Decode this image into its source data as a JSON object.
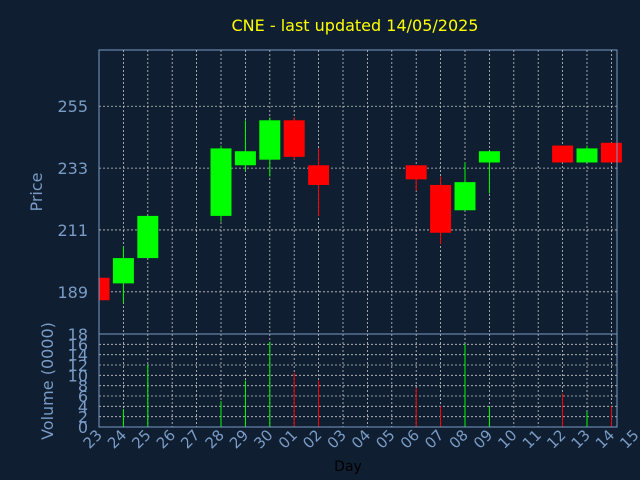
{
  "chart_data": [
    {
      "type": "candlestick",
      "title": "CNE - last updated 14/05/2025",
      "xlabel": "Day",
      "ylabel": "Price",
      "y_ticks": [
        "255",
        "233",
        "211",
        "189"
      ],
      "x_ticks": [
        "23",
        "24",
        "25",
        "26",
        "27",
        "28",
        "29",
        "30",
        "01",
        "02",
        "03",
        "04",
        "05",
        "06",
        "07",
        "08",
        "09",
        "10",
        "11",
        "12",
        "13",
        "14",
        "15"
      ],
      "ylim": [
        174,
        275
      ],
      "grid": true,
      "colors": {
        "up": "#00ff00",
        "down": "#ff0000",
        "title": "#ffff00",
        "axis_text": "#7a9cc6",
        "background": "#0f1e30"
      },
      "candles": [
        {
          "day": "23",
          "open": 194,
          "close": 186,
          "high": 194,
          "low": 186
        },
        {
          "day": "24",
          "open": 192,
          "close": 201,
          "high": 205,
          "low": 185
        },
        {
          "day": "25",
          "open": 201,
          "close": 216,
          "high": 216,
          "low": 201
        },
        {
          "day": "28",
          "open": 216,
          "close": 240,
          "high": 241,
          "low": 214
        },
        {
          "day": "29",
          "open": 234,
          "close": 239,
          "high": 250,
          "low": 232
        },
        {
          "day": "30",
          "open": 236,
          "close": 250,
          "high": 251,
          "low": 230
        },
        {
          "day": "01",
          "open": 250,
          "close": 237,
          "high": 251,
          "low": 236
        },
        {
          "day": "02",
          "open": 234,
          "close": 227,
          "high": 240,
          "low": 216
        },
        {
          "day": "06",
          "open": 234,
          "close": 229,
          "high": 234,
          "low": 225
        },
        {
          "day": "07",
          "open": 227,
          "close": 210,
          "high": 230,
          "low": 206
        },
        {
          "day": "08",
          "open": 218,
          "close": 228,
          "high": 235,
          "low": 218
        },
        {
          "day": "09",
          "open": 235,
          "close": 239,
          "high": 239,
          "low": 224
        },
        {
          "day": "12",
          "open": 241,
          "close": 235,
          "high": 241,
          "low": 235
        },
        {
          "day": "13",
          "open": 235,
          "close": 240,
          "high": 241,
          "low": 235
        },
        {
          "day": "14",
          "open": 242,
          "close": 235,
          "high": 242,
          "low": 235
        }
      ]
    },
    {
      "type": "bar",
      "ylabel": "Volume (0000)",
      "y_ticks": [
        "18",
        "16",
        "14",
        "12",
        "10",
        "8",
        "6",
        "4",
        "2",
        "0"
      ],
      "ylim": [
        0,
        18
      ],
      "x_ticks_shared": true,
      "bars": [
        {
          "day": "24",
          "value": 3.5,
          "direction": "up"
        },
        {
          "day": "25",
          "value": 12,
          "direction": "up"
        },
        {
          "day": "28",
          "value": 5,
          "direction": "up"
        },
        {
          "day": "29",
          "value": 9,
          "direction": "up"
        },
        {
          "day": "30",
          "value": 16.5,
          "direction": "up"
        },
        {
          "day": "01",
          "value": 10.5,
          "direction": "down"
        },
        {
          "day": "02",
          "value": 9,
          "direction": "down"
        },
        {
          "day": "06",
          "value": 7.5,
          "direction": "down"
        },
        {
          "day": "07",
          "value": 4,
          "direction": "down"
        },
        {
          "day": "08",
          "value": 16,
          "direction": "up"
        },
        {
          "day": "09",
          "value": 4,
          "direction": "up"
        },
        {
          "day": "12",
          "value": 6.5,
          "direction": "down"
        },
        {
          "day": "13",
          "value": 3,
          "direction": "up"
        },
        {
          "day": "14",
          "value": 4,
          "direction": "down"
        }
      ]
    }
  ]
}
